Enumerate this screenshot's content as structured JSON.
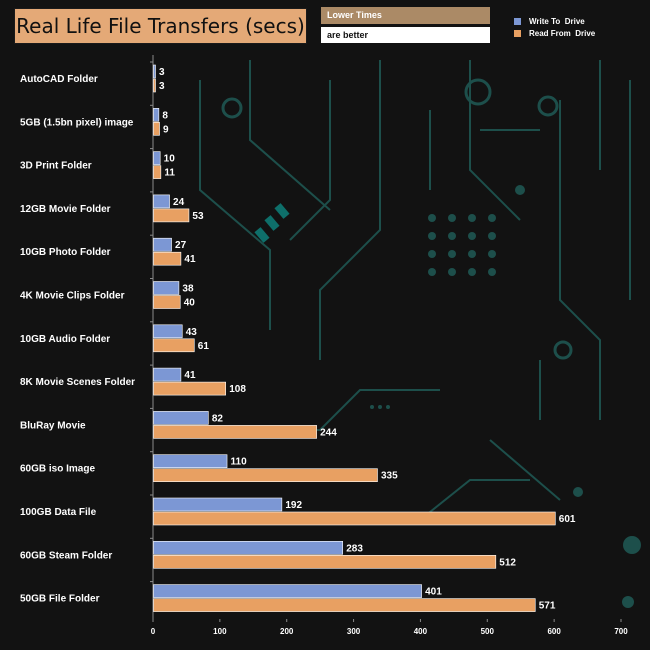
{
  "header": {
    "title": "Real Life File Transfers (secs)",
    "note_line1": "Lower Times",
    "note_line2": "are better"
  },
  "legend": [
    {
      "label": "Write To  Drive",
      "color": "#7c97d4"
    },
    {
      "label": "Read From  Drive",
      "color": "#e8a062"
    }
  ],
  "chart_data": {
    "type": "bar",
    "orientation": "horizontal",
    "title": "Real Life File Transfers (secs)",
    "categories": [
      "AutoCAD Folder",
      "5GB (1.5bn pixel) image",
      "3D Print Folder",
      "12GB Movie Folder",
      "10GB Photo Folder",
      "4K Movie Clips Folder",
      "10GB Audio Folder",
      "8K Movie Scenes Folder",
      "BluRay Movie",
      "60GB iso Image",
      "100GB Data File",
      "60GB Steam Folder",
      "50GB File Folder"
    ],
    "series": [
      {
        "name": "Write To  Drive",
        "color": "#7c97d4",
        "values": [
          3,
          8,
          10,
          24,
          27,
          38,
          43,
          41,
          82,
          110,
          192,
          283,
          401
        ]
      },
      {
        "name": "Read From  Drive",
        "color": "#e8a062",
        "values": [
          3,
          9,
          11,
          53,
          41,
          40,
          61,
          108,
          244,
          335,
          601,
          512,
          571
        ]
      }
    ],
    "xlim": [
      0,
      700
    ],
    "xticks": [
      0,
      100,
      200,
      300,
      400,
      500,
      600,
      700
    ],
    "grid": false,
    "legend_position": "top-right"
  }
}
